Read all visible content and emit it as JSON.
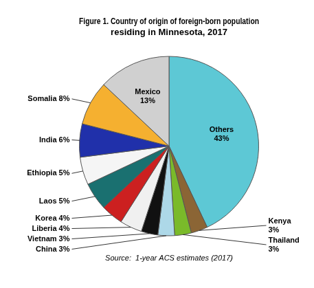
{
  "chart_data": {
    "type": "pie",
    "title": "Figure 1. Country of origin of foreign-born population\nresiding in Minnesota, 2017",
    "source": "Source:  1-year ACS estimates (2017)",
    "categories": [
      "Others",
      "Kenya",
      "Thailand",
      "China",
      "Vietnam",
      "Liberia",
      "Korea",
      "Laos",
      "Ethiopia",
      "India",
      "Somalia",
      "Mexico"
    ],
    "values": [
      43,
      3,
      3,
      3,
      3,
      4,
      4,
      5,
      5,
      6,
      8,
      13
    ],
    "colors": [
      "#5dc8d5",
      "#8b6535",
      "#7aba2a",
      "#add8e8",
      "#111111",
      "#f0f0f0",
      "#cc2020",
      "#1a7070",
      "#f5f5f5",
      "#2030aa",
      "#f5b030",
      "#d0d0d0"
    ],
    "data_labels": true,
    "value_labels": [
      "Others\n43%",
      "Kenya\n3%",
      "Thailand\n3%",
      "China 3%",
      "Vietnam 3%",
      "Liberia 4%",
      "Korea 4%",
      "Laos 5%",
      "Ethiopia 5%",
      "India 6%",
      "Somalia 8%",
      "Mexico\n13%"
    ]
  }
}
